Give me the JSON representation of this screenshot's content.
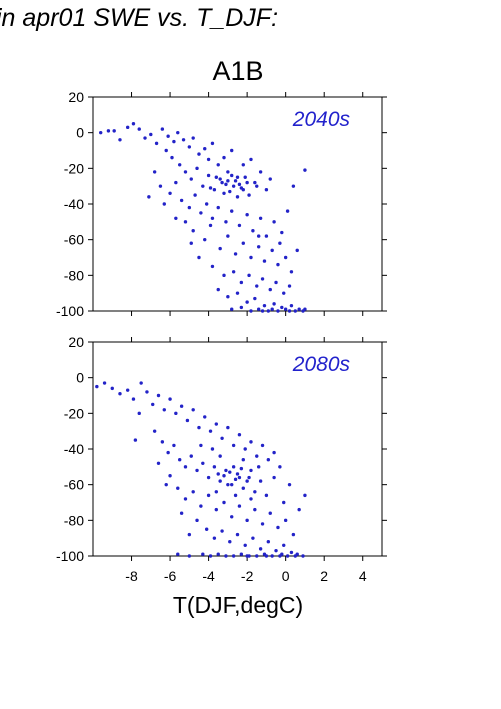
{
  "page_title": "in apr01 SWE vs. T_DJF:",
  "scenario": "A1B",
  "colors": {
    "points": "#2323c8",
    "axis": "#000000"
  },
  "chart_data": [
    {
      "type": "scatter",
      "panel_label": "2040s",
      "xlim": [
        -10,
        5
      ],
      "ylim": [
        -100,
        20
      ],
      "yticks": [
        20,
        0,
        -20,
        -40,
        -60,
        -80,
        -100
      ],
      "xticks": [
        -8,
        -6,
        -4,
        -2,
        0,
        2,
        4
      ],
      "show_x_tick_labels": false,
      "grid": false,
      "points": [
        [
          -9.6,
          0
        ],
        [
          -9.2,
          1
        ],
        [
          -8.9,
          1
        ],
        [
          -8.6,
          -4
        ],
        [
          -8.2,
          3
        ],
        [
          -7.9,
          5
        ],
        [
          -7.6,
          2
        ],
        [
          -7.3,
          -3
        ],
        [
          -7.0,
          -1
        ],
        [
          -6.7,
          -6
        ],
        [
          -6.4,
          2
        ],
        [
          -6.1,
          -2
        ],
        [
          -5.8,
          -5
        ],
        [
          -5.6,
          0
        ],
        [
          -5.3,
          -4
        ],
        [
          -5.0,
          -8
        ],
        [
          -4.8,
          -3
        ],
        [
          -4.5,
          -12
        ],
        [
          -4.2,
          -9
        ],
        [
          -4.0,
          -15
        ],
        [
          -3.8,
          -6
        ],
        [
          -3.5,
          -18
        ],
        [
          -3.2,
          -14
        ],
        [
          -3.0,
          -22
        ],
        [
          -2.8,
          -10
        ],
        [
          -2.5,
          -25
        ],
        [
          -2.2,
          -18
        ],
        [
          -2.0,
          -28
        ],
        [
          -1.8,
          -15
        ],
        [
          -1.5,
          -30
        ],
        [
          -6.2,
          -10
        ],
        [
          -5.9,
          -14
        ],
        [
          -5.5,
          -18
        ],
        [
          -5.2,
          -22
        ],
        [
          -4.9,
          -26
        ],
        [
          -4.6,
          -20
        ],
        [
          -4.3,
          -30
        ],
        [
          -4.0,
          -24
        ],
        [
          -3.7,
          -32
        ],
        [
          -3.4,
          -26
        ],
        [
          -3.1,
          -29
        ],
        [
          -2.9,
          -33
        ],
        [
          -2.6,
          -27
        ],
        [
          -2.3,
          -31
        ],
        [
          -2.1,
          -25
        ],
        [
          -1.9,
          -35
        ],
        [
          -1.6,
          -28
        ],
        [
          -1.3,
          -22
        ],
        [
          -1.0,
          -32
        ],
        [
          -0.8,
          -26
        ],
        [
          -3.3,
          -28
        ],
        [
          -3.0,
          -27
        ],
        [
          -2.7,
          -30
        ],
        [
          -2.4,
          -29
        ],
        [
          -3.6,
          -25
        ],
        [
          -2.8,
          -24
        ],
        [
          -3.9,
          -31
        ],
        [
          -2.2,
          -32
        ],
        [
          -3.2,
          -34
        ],
        [
          -2.5,
          -36
        ],
        [
          -6.8,
          -22
        ],
        [
          -6.5,
          -30
        ],
        [
          -6.0,
          -34
        ],
        [
          -5.7,
          -28
        ],
        [
          -5.4,
          -38
        ],
        [
          -5.0,
          -42
        ],
        [
          -4.7,
          -35
        ],
        [
          -4.4,
          -45
        ],
        [
          -4.1,
          -40
        ],
        [
          -3.8,
          -48
        ],
        [
          -3.5,
          -42
        ],
        [
          -3.1,
          -50
        ],
        [
          -2.8,
          -44
        ],
        [
          -2.4,
          -52
        ],
        [
          -2.0,
          -46
        ],
        [
          -1.7,
          -55
        ],
        [
          -1.3,
          -48
        ],
        [
          -1.0,
          -58
        ],
        [
          -0.6,
          -50
        ],
        [
          -0.3,
          -62
        ],
        [
          -5.2,
          -50
        ],
        [
          -4.8,
          -55
        ],
        [
          -4.2,
          -60
        ],
        [
          -3.9,
          -52
        ],
        [
          -3.4,
          -65
        ],
        [
          -3.0,
          -58
        ],
        [
          -2.6,
          -68
        ],
        [
          -2.2,
          -62
        ],
        [
          -1.8,
          -70
        ],
        [
          -1.4,
          -64
        ],
        [
          -1.1,
          -72
        ],
        [
          -0.7,
          -66
        ],
        [
          -0.4,
          -74
        ],
        [
          0.0,
          -70
        ],
        [
          0.3,
          -78
        ],
        [
          -4.5,
          -70
        ],
        [
          -3.8,
          -75
        ],
        [
          -3.2,
          -80
        ],
        [
          -2.7,
          -78
        ],
        [
          -2.3,
          -84
        ],
        [
          -1.9,
          -80
        ],
        [
          -1.5,
          -86
        ],
        [
          -1.2,
          -82
        ],
        [
          -0.8,
          -88
        ],
        [
          -0.5,
          -84
        ],
        [
          -0.1,
          -90
        ],
        [
          0.2,
          -86
        ],
        [
          -3.5,
          -88
        ],
        [
          -3.0,
          -92
        ],
        [
          -2.5,
          -90
        ],
        [
          -2.0,
          -95
        ],
        [
          -1.6,
          -93
        ],
        [
          -1.1,
          -97
        ],
        [
          -0.6,
          -96
        ],
        [
          -0.2,
          -98
        ],
        [
          0.3,
          -97
        ],
        [
          0.7,
          -99
        ],
        [
          1.0,
          -99
        ],
        [
          -2.8,
          -99
        ],
        [
          -2.3,
          -98
        ],
        [
          -1.8,
          -100
        ],
        [
          -1.4,
          -99
        ],
        [
          -0.9,
          -100
        ],
        [
          -0.4,
          -100
        ],
        [
          0.0,
          -99
        ],
        [
          0.5,
          -100
        ],
        [
          0.9,
          -100
        ],
        [
          -1.2,
          -100
        ],
        [
          -0.7,
          -99
        ],
        [
          0.2,
          -100
        ],
        [
          1.0,
          -21
        ],
        [
          0.4,
          -30
        ],
        [
          0.1,
          -44
        ],
        [
          -0.2,
          -56
        ],
        [
          0.6,
          -66
        ],
        [
          -1.4,
          -58
        ],
        [
          -4.9,
          -62
        ],
        [
          -5.7,
          -48
        ],
        [
          -6.3,
          -40
        ],
        [
          -7.1,
          -36
        ]
      ]
    },
    {
      "type": "scatter",
      "panel_label": "2080s",
      "xlim": [
        -10,
        5
      ],
      "ylim": [
        -100,
        20
      ],
      "yticks": [
        20,
        0,
        -20,
        -40,
        -60,
        -80,
        -100
      ],
      "xticks": [
        -8,
        -6,
        -4,
        -2,
        0,
        2,
        4
      ],
      "xtick_labels": [
        "-8",
        "-6",
        "-4",
        "-2",
        "0",
        "2",
        "4"
      ],
      "xlabel": "T(DJF,degC)",
      "grid": false,
      "points": [
        [
          -9.8,
          -5
        ],
        [
          -9.4,
          -3
        ],
        [
          -9.0,
          -6
        ],
        [
          -8.6,
          -9
        ],
        [
          -8.2,
          -7
        ],
        [
          -7.9,
          -12
        ],
        [
          -7.5,
          -3
        ],
        [
          -7.2,
          -8
        ],
        [
          -6.9,
          -15
        ],
        [
          -6.6,
          -10
        ],
        [
          -6.3,
          -18
        ],
        [
          -6.0,
          -12
        ],
        [
          -5.7,
          -20
        ],
        [
          -5.4,
          -16
        ],
        [
          -5.1,
          -24
        ],
        [
          -4.8,
          -18
        ],
        [
          -4.5,
          -28
        ],
        [
          -4.2,
          -22
        ],
        [
          -3.9,
          -30
        ],
        [
          -3.6,
          -26
        ],
        [
          -3.3,
          -34
        ],
        [
          -3.0,
          -28
        ],
        [
          -2.7,
          -38
        ],
        [
          -2.4,
          -32
        ],
        [
          -2.1,
          -40
        ],
        [
          -1.8,
          -36
        ],
        [
          -1.5,
          -44
        ],
        [
          -1.2,
          -38
        ],
        [
          -0.9,
          -46
        ],
        [
          -0.6,
          -42
        ],
        [
          -6.8,
          -30
        ],
        [
          -6.4,
          -36
        ],
        [
          -6.1,
          -42
        ],
        [
          -5.8,
          -38
        ],
        [
          -5.5,
          -46
        ],
        [
          -5.2,
          -50
        ],
        [
          -4.9,
          -44
        ],
        [
          -4.6,
          -52
        ],
        [
          -4.3,
          -48
        ],
        [
          -4.0,
          -56
        ],
        [
          -3.7,
          -50
        ],
        [
          -3.4,
          -58
        ],
        [
          -3.1,
          -52
        ],
        [
          -2.8,
          -60
        ],
        [
          -2.5,
          -54
        ],
        [
          -2.2,
          -62
        ],
        [
          -1.9,
          -56
        ],
        [
          -1.6,
          -64
        ],
        [
          -1.3,
          -58
        ],
        [
          -1.0,
          -66
        ],
        [
          -3.2,
          -55
        ],
        [
          -2.9,
          -53
        ],
        [
          -2.6,
          -57
        ],
        [
          -2.3,
          -51
        ],
        [
          -3.5,
          -54
        ],
        [
          -2.7,
          -50
        ],
        [
          -2.0,
          -58
        ],
        [
          -3.0,
          -60
        ],
        [
          -2.4,
          -56
        ],
        [
          -1.8,
          -52
        ],
        [
          -6.0,
          -55
        ],
        [
          -5.6,
          -62
        ],
        [
          -5.2,
          -68
        ],
        [
          -4.8,
          -64
        ],
        [
          -4.4,
          -72
        ],
        [
          -4.0,
          -66
        ],
        [
          -3.6,
          -74
        ],
        [
          -3.2,
          -70
        ],
        [
          -2.8,
          -78
        ],
        [
          -2.4,
          -72
        ],
        [
          -2.0,
          -80
        ],
        [
          -1.6,
          -74
        ],
        [
          -1.2,
          -82
        ],
        [
          -0.8,
          -76
        ],
        [
          -0.4,
          -84
        ],
        [
          0.0,
          -80
        ],
        [
          0.4,
          -88
        ],
        [
          -4.6,
          -80
        ],
        [
          -4.1,
          -85
        ],
        [
          -3.7,
          -90
        ],
        [
          -3.3,
          -86
        ],
        [
          -2.9,
          -92
        ],
        [
          -2.5,
          -88
        ],
        [
          -2.1,
          -94
        ],
        [
          -1.7,
          -90
        ],
        [
          -1.3,
          -96
        ],
        [
          -0.9,
          -92
        ],
        [
          -0.5,
          -97
        ],
        [
          -0.1,
          -94
        ],
        [
          0.3,
          -98
        ],
        [
          -4.3,
          -99
        ],
        [
          -3.9,
          -100
        ],
        [
          -3.5,
          -99
        ],
        [
          -3.1,
          -100
        ],
        [
          -2.7,
          -100
        ],
        [
          -2.3,
          -99
        ],
        [
          -1.9,
          -100
        ],
        [
          -1.5,
          -100
        ],
        [
          -1.1,
          -99
        ],
        [
          -0.7,
          -100
        ],
        [
          -0.3,
          -100
        ],
        [
          0.1,
          -100
        ],
        [
          0.5,
          -100
        ],
        [
          0.9,
          -100
        ],
        [
          -5.0,
          -100
        ],
        [
          -5.6,
          -99
        ],
        [
          -2.0,
          -100
        ],
        [
          -1.0,
          -100
        ],
        [
          -0.2,
          -99
        ],
        [
          0.6,
          -99
        ],
        [
          1.0,
          -66
        ],
        [
          0.7,
          -74
        ],
        [
          0.2,
          -60
        ],
        [
          -0.3,
          -50
        ],
        [
          -7.6,
          -20
        ],
        [
          -7.8,
          -35
        ],
        [
          -6.6,
          -48
        ],
        [
          -6.2,
          -60
        ],
        [
          -5.4,
          -76
        ],
        [
          -5.0,
          -88
        ],
        [
          -3.8,
          -40
        ],
        [
          -3.4,
          -44
        ],
        [
          -4.4,
          -38
        ],
        [
          -2.2,
          -46
        ],
        [
          -1.4,
          -50
        ],
        [
          -0.6,
          -56
        ],
        [
          -0.1,
          -70
        ],
        [
          -1.8,
          -68
        ],
        [
          -2.6,
          -66
        ],
        [
          -3.6,
          -64
        ]
      ]
    }
  ]
}
